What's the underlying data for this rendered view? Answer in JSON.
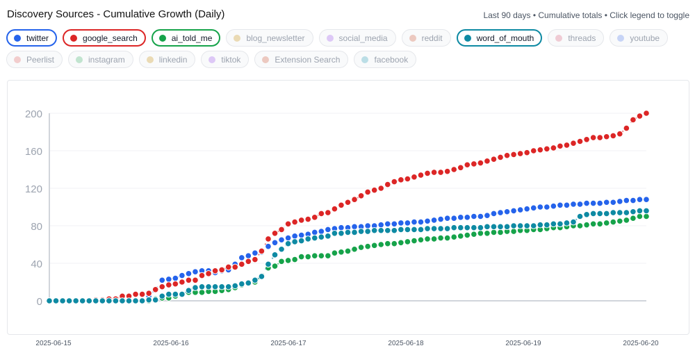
{
  "header": {
    "title": "Discovery Sources - Cumulative Growth (Daily)",
    "subtitle": "Last 90 days • Cumulative totals • Click legend to toggle"
  },
  "legend": [
    {
      "label": "twitter",
      "color": "#2563eb",
      "active": true
    },
    {
      "label": "google_search",
      "color": "#dc2626",
      "active": true
    },
    {
      "label": "ai_told_me",
      "color": "#16a34a",
      "active": true
    },
    {
      "label": "blog_newsletter",
      "color": "#d4a94a",
      "active": false
    },
    {
      "label": "social_media",
      "color": "#b57cf0",
      "active": false
    },
    {
      "label": "reddit",
      "color": "#d9806a",
      "active": false
    },
    {
      "label": "word_of_mouth",
      "color": "#0e8aa3",
      "active": true
    },
    {
      "label": "threads",
      "color": "#e0859a",
      "active": false
    },
    {
      "label": "youtube",
      "color": "#7c9cf0",
      "active": false
    },
    {
      "label": "Peerlist",
      "color": "#e88a8a",
      "active": false
    },
    {
      "label": "instagram",
      "color": "#6fc48e",
      "active": false
    },
    {
      "label": "linkedin",
      "color": "#d4a94a",
      "active": false
    },
    {
      "label": "tiktok",
      "color": "#b57cf0",
      "active": false
    },
    {
      "label": "Extension Search",
      "color": "#d9806a",
      "active": false
    },
    {
      "label": "facebook",
      "color": "#5fb3c9",
      "active": false
    }
  ],
  "chart_data": {
    "type": "line",
    "title": "Discovery Sources - Cumulative Growth (Daily)",
    "xlabel": "",
    "ylabel": "",
    "ylim": [
      0,
      200
    ],
    "yticks": [
      "0",
      "40",
      "80",
      "120",
      "160",
      "200"
    ],
    "xtick_labels": [
      "2025-06-15",
      "2025-06-16",
      "2025-06-17",
      "2025-06-18",
      "2025-06-19",
      "2025-06-20"
    ],
    "grid": true,
    "series": [
      {
        "name": "twitter",
        "color": "#2563eb",
        "values": [
          0,
          0,
          0,
          0,
          0,
          0,
          0,
          0,
          0,
          0,
          0,
          0,
          0,
          0,
          0,
          5,
          12,
          22,
          23,
          24,
          27,
          29,
          31,
          32,
          32,
          30,
          32,
          33,
          39,
          46,
          48,
          51,
          52,
          58,
          62,
          65,
          67,
          69,
          70,
          71,
          73,
          74,
          76,
          77,
          78,
          78,
          79,
          79,
          80,
          80,
          81,
          82,
          82,
          83,
          83,
          84,
          84,
          85,
          86,
          87,
          88,
          88,
          89,
          89,
          90,
          90,
          91,
          93,
          94,
          95,
          96,
          97,
          98,
          99,
          100,
          100,
          101,
          102,
          102,
          103,
          103,
          104,
          104,
          104,
          105,
          105,
          106,
          107,
          107,
          108,
          108
        ]
      },
      {
        "name": "google_search",
        "color": "#dc2626",
        "values": [
          0,
          0,
          0,
          0,
          0,
          0,
          0,
          1,
          1,
          2,
          2,
          5,
          5,
          7,
          7,
          8,
          12,
          15,
          17,
          18,
          20,
          22,
          22,
          27,
          29,
          32,
          33,
          36,
          36,
          39,
          42,
          44,
          53,
          66,
          72,
          76,
          82,
          84,
          86,
          87,
          89,
          93,
          94,
          98,
          102,
          105,
          108,
          112,
          116,
          118,
          120,
          124,
          127,
          129,
          130,
          132,
          134,
          136,
          137,
          137,
          138,
          140,
          142,
          145,
          146,
          147,
          149,
          151,
          153,
          155,
          156,
          157,
          158,
          160,
          161,
          162,
          163,
          165,
          166,
          168,
          170,
          172,
          174,
          174,
          175,
          176,
          178,
          184,
          193,
          197,
          200
        ]
      },
      {
        "name": "ai_told_me",
        "color": "#16a34a",
        "values": [
          0,
          0,
          0,
          0,
          0,
          0,
          0,
          0,
          0,
          0,
          0,
          0,
          0,
          0,
          0,
          0,
          2,
          3,
          3,
          5,
          7,
          9,
          9,
          9,
          10,
          10,
          11,
          12,
          14,
          17,
          19,
          20,
          26,
          35,
          37,
          42,
          43,
          44,
          47,
          47,
          48,
          48,
          48,
          51,
          52,
          53,
          55,
          57,
          58,
          59,
          60,
          61,
          61,
          62,
          63,
          64,
          65,
          66,
          66,
          67,
          67,
          68,
          69,
          70,
          71,
          72,
          72,
          73,
          73,
          74,
          74,
          75,
          75,
          76,
          76,
          77,
          78,
          78,
          79,
          80,
          80,
          81,
          82,
          82,
          83,
          84,
          85,
          86,
          88,
          90,
          90
        ]
      },
      {
        "name": "word_of_mouth",
        "color": "#0e8aa3",
        "values": [
          0,
          0,
          0,
          0,
          0,
          0,
          0,
          0,
          0,
          0,
          0,
          0,
          0,
          0,
          0,
          1,
          1,
          5,
          7,
          7,
          7,
          11,
          14,
          15,
          15,
          15,
          15,
          15,
          16,
          18,
          19,
          22,
          26,
          39,
          49,
          55,
          61,
          63,
          64,
          66,
          67,
          68,
          69,
          72,
          72,
          73,
          73,
          74,
          74,
          75,
          75,
          75,
          75,
          76,
          76,
          76,
          76,
          77,
          77,
          77,
          77,
          78,
          78,
          78,
          78,
          78,
          79,
          79,
          79,
          79,
          80,
          80,
          80,
          80,
          81,
          81,
          82,
          82,
          83,
          84,
          90,
          92,
          93,
          93,
          93,
          94,
          94,
          94,
          95,
          96,
          96
        ]
      }
    ]
  }
}
